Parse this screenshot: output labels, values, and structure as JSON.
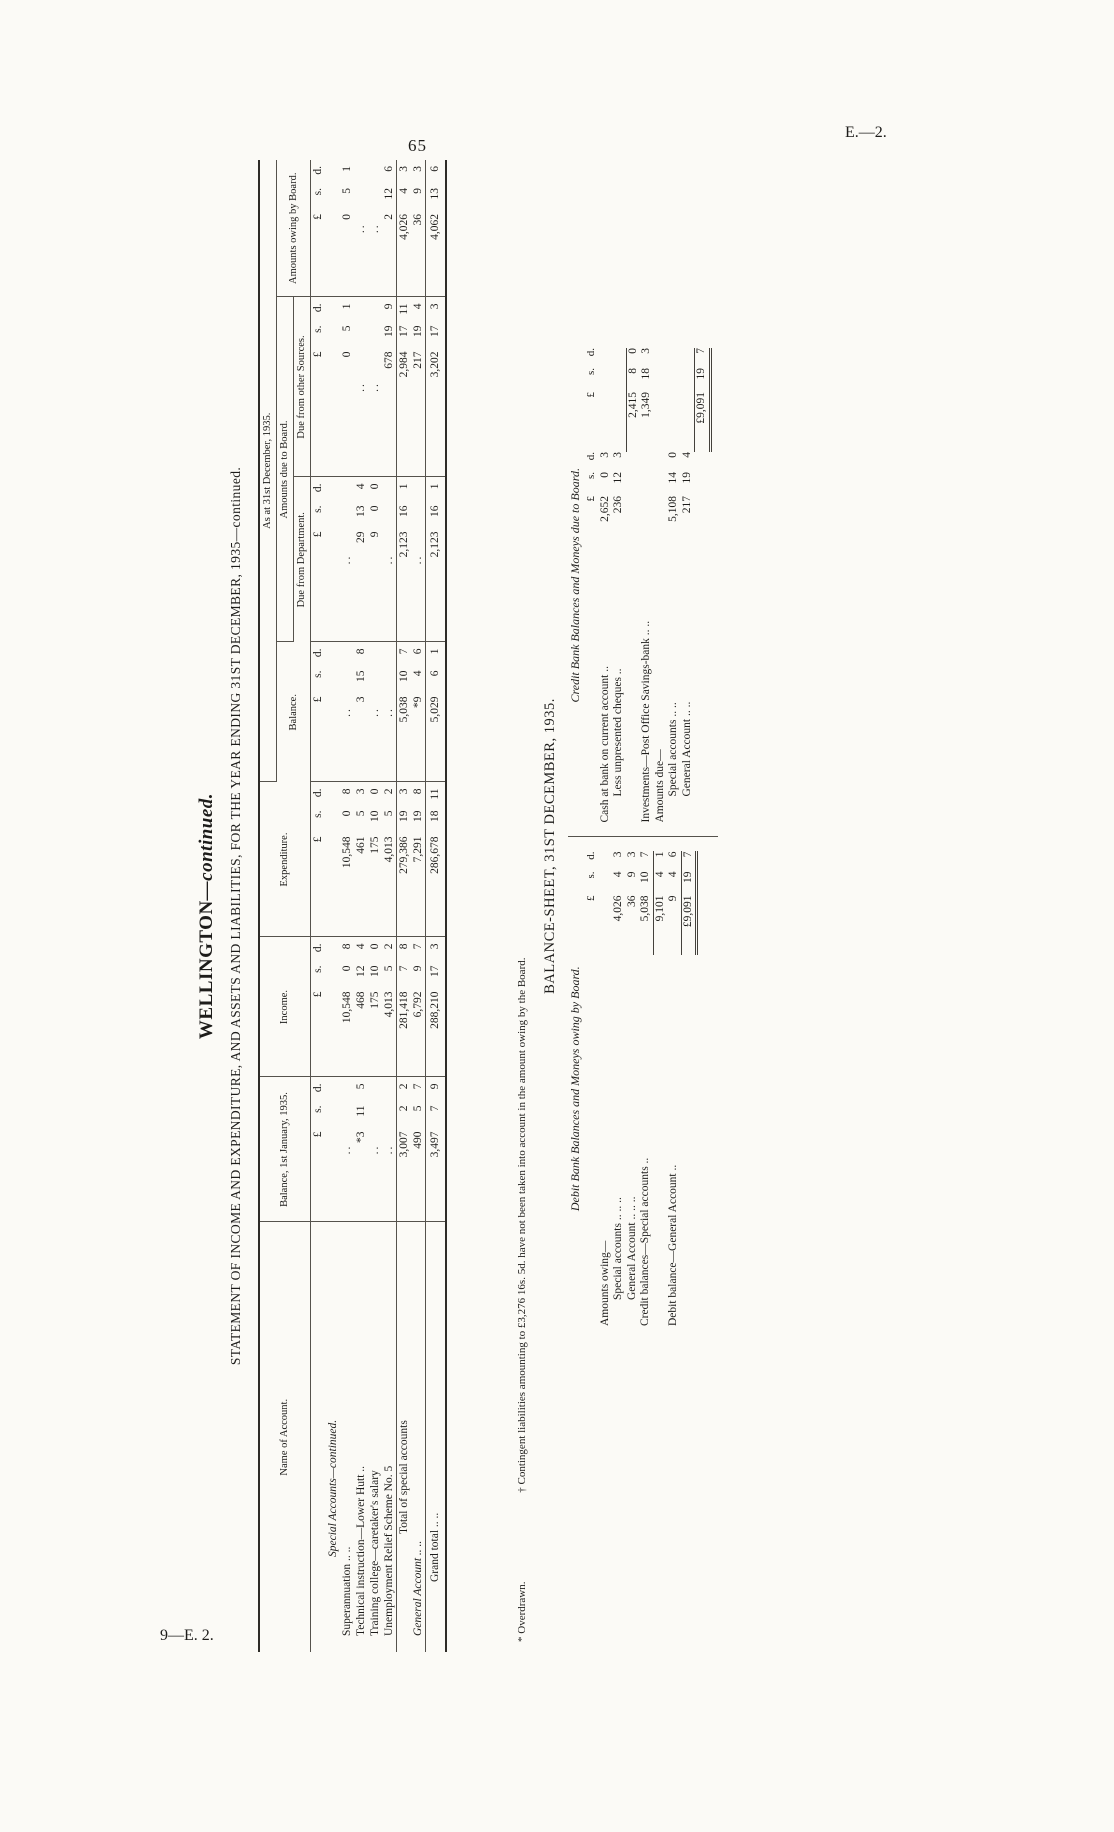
{
  "page": {
    "number": "65",
    "edition": "E.—2.",
    "footer_signature": "9—E. 2."
  },
  "titles": {
    "region": "WELLINGTON",
    "region_suffix": "—continued.",
    "statement": "STATEMENT OF INCOME AND EXPENDITURE, AND ASSETS AND LIABILITIES, FOR THE YEAR ENDING 31ST DECEMBER, 1935—continued."
  },
  "table": {
    "headers": {
      "name": "Name of Account.",
      "bal1": "Balance, 1st January, 1935.",
      "income": "Income.",
      "expenditure": "Expenditure.",
      "as_at": "As at 31st December, 1935.",
      "balance": "Balance.",
      "due": "Amounts due to Board.",
      "due_dept": "Due from Department.",
      "due_other": "Due from other Sources.",
      "owing": "Amounts owing by Board.",
      "currency": "£ s. d."
    },
    "rows": [
      {
        "type": "currency",
        "cells": [
          "£ s. d.",
          "£ s. d.",
          "£ s. d.",
          "£ s. d.",
          "£ s. d.",
          "£ s. d.",
          "£ s. d."
        ]
      },
      {
        "type": "section",
        "name": "Special Accounts—continued."
      },
      {
        "type": "account",
        "name": "Superannuation .. ..",
        "cells": [
          "..",
          "10,548 0 8",
          "10,548 0 8",
          "..",
          "..",
          "0 5 1",
          "0 5 1"
        ]
      },
      {
        "type": "account",
        "name": "Technical instruction—Lower Hutt ..",
        "cells": [
          "*3 11 5",
          "468 12 4",
          "461 5 3",
          "3 15 8",
          "29 13 4",
          "..",
          ".."
        ]
      },
      {
        "type": "account",
        "name": "Training college—caretaker's salary",
        "cells": [
          "..",
          "175 10 0",
          "175 10 0",
          "..",
          "9 0 0",
          "..",
          ".."
        ]
      },
      {
        "type": "account",
        "name": "Unemployment Relief Scheme No. 5",
        "cells": [
          "..",
          "4,013 5 2",
          "4,013 5 2",
          "..",
          "..",
          "678 19 9",
          "2 12 6"
        ]
      },
      {
        "type": "total",
        "name": "Total of special accounts",
        "cells": [
          "3,007 2 2",
          "281,418 7 8",
          "279,386 19 3",
          "5,038 10 7",
          "2,123 16 1",
          "2,984 17 11",
          "4,026 4 3"
        ]
      },
      {
        "type": "general",
        "name": "General Account .. ..",
        "cells": [
          "490 5 7",
          "6,792 9 7",
          "7,291 19 8",
          "*9 4 6",
          "..",
          "217 19 4",
          "36 9 3"
        ]
      },
      {
        "type": "grand",
        "name": "Grand total .. ..",
        "cells": [
          "3,497 7 9",
          "288,210 17 3",
          "286,678 18 11",
          "5,029 6 1",
          "2,123 16 1",
          "3,202 17 3",
          "4,062 13 6"
        ]
      }
    ]
  },
  "footnotes": {
    "overdrawn": "* Overdrawn.",
    "contingent": "† Contingent liabilities amounting to £3,276 16s. 5d. have not been taken into account in the amount owing by the Board."
  },
  "balance_sheet": {
    "title": "BALANCE-SHEET, 31ST DECEMBER, 1935.",
    "debit": {
      "heading": "Debit Bank Balances and Moneys owing by Board.",
      "currency": "£ s. d.",
      "rows": [
        {
          "label": "Amounts owing—"
        },
        {
          "label": "Special accounts .. .. ..",
          "indent": true,
          "value": "4,026 4 3"
        },
        {
          "label": "General Account .. .. ..",
          "indent": true,
          "value": "36 9 3"
        },
        {
          "label": "Credit balances—Special accounts ..",
          "value": "5,038 10 7"
        },
        {
          "label": "",
          "value": "9,101 4 1",
          "rule": true
        },
        {
          "label": "Debit balance—General Account ..",
          "value": "9 4 6"
        },
        {
          "label": "",
          "value": "£9,091 19 7",
          "rule": true,
          "total": true
        }
      ]
    },
    "credit": {
      "heading": "Credit Bank Balances and Moneys due to Board.",
      "currency_inner": "£ s. d.",
      "currency_outer": "£ s. d.",
      "rows": [
        {
          "label": "Cash at bank on current account ..",
          "inner": "2,652 0 3"
        },
        {
          "label": "Less unpresented cheques ..",
          "indent": true,
          "inner": "236 12 3"
        },
        {
          "label": "",
          "value": "2,415 8 0",
          "rule": true
        },
        {
          "label": "Investments—Post Office Savings-bank .. ..",
          "value": "1,349 18 3"
        },
        {
          "label": "Amounts due—"
        },
        {
          "label": "Special accounts .. ..",
          "indent": true,
          "inner": "5,108 14 0"
        },
        {
          "label": "General Account .. ..",
          "indent": true,
          "inner": "217 19 4"
        },
        {
          "label": "",
          "value": "£9,091 19 7",
          "rule": true,
          "total": true
        }
      ]
    }
  }
}
